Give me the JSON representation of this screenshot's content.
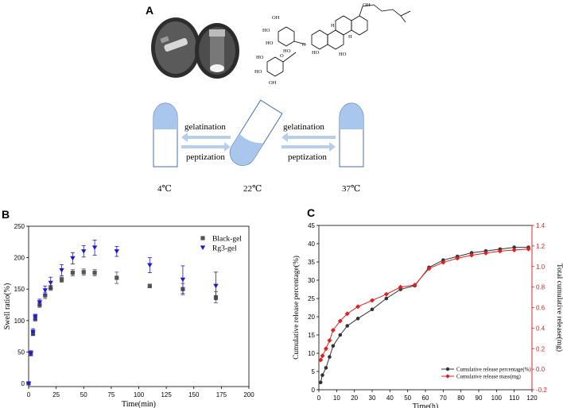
{
  "panel_a": {
    "letter": "A",
    "left_tube_temp": "4℃",
    "middle_tube_temp": "22℃",
    "right_tube_temp": "37℃",
    "left_gelatination": "gelatination",
    "left_peptization": "peptization",
    "right_gelatination": "gelatination",
    "right_peptization": "peptization",
    "molecule_labels": [
      "OH",
      "HO",
      "HO",
      "HO",
      "O",
      "O",
      "HO",
      "HO",
      "OH",
      "OH",
      "HO",
      "HO",
      "H",
      "H"
    ],
    "colors": {
      "gel_fill": "#a9c6ec",
      "arrow": "#b7cdea",
      "tube_stroke": "#4a6ea8"
    }
  },
  "chart_data": [
    {
      "type": "scatter",
      "panel": "B",
      "xlabel": "Time(min)",
      "ylabel": "Swell ratio(%)",
      "xlim": [
        0,
        200
      ],
      "ylim": [
        -5,
        250
      ],
      "xticks": [
        0,
        25,
        50,
        75,
        100,
        125,
        150,
        175,
        200
      ],
      "yticks": [
        0,
        50,
        100,
        150,
        200,
        250
      ],
      "legend_position": "top-right",
      "series": [
        {
          "name": "Black-gel",
          "marker": "square",
          "color": "#555555",
          "x": [
            0,
            2,
            4,
            6,
            10,
            15,
            20,
            30,
            40,
            50,
            60,
            80,
            110,
            140,
            170
          ],
          "y": [
            0,
            47,
            80,
            103,
            125,
            140,
            152,
            165,
            176,
            177,
            176,
            168,
            155,
            150,
            137
          ],
          "err": [
            0,
            3,
            4,
            4,
            4,
            5,
            4,
            4,
            5,
            5,
            5,
            9,
            3,
            9,
            9
          ]
        },
        {
          "name": "Rg3-gel",
          "marker": "triangle-down",
          "color": "#1a1ad0",
          "x": [
            0,
            2,
            4,
            6,
            10,
            15,
            20,
            30,
            40,
            50,
            60,
            80,
            110,
            140,
            170
          ],
          "y": [
            0,
            48,
            82,
            106,
            129,
            148,
            160,
            180,
            199,
            210,
            216,
            210,
            188,
            165,
            155
          ],
          "err": [
            0,
            4,
            5,
            4,
            5,
            7,
            9,
            9,
            9,
            9,
            12,
            8,
            12,
            22,
            22
          ]
        }
      ]
    },
    {
      "type": "line",
      "panel": "C",
      "xlabel": "Time(h)",
      "ylabel": "Cumulative release percentage(%)",
      "y2label": "Total cumulative release(mg)",
      "xlim": [
        0,
        120
      ],
      "ylim": [
        0,
        45
      ],
      "y2lim": [
        -0.2,
        1.4
      ],
      "xticks": [
        0,
        10,
        20,
        30,
        40,
        50,
        60,
        70,
        80,
        90,
        100,
        110,
        120
      ],
      "yticks": [
        0,
        5,
        10,
        15,
        20,
        25,
        30,
        35,
        40,
        45
      ],
      "y2ticks": [
        -0.2,
        0.0,
        0.2,
        0.4,
        0.6,
        0.8,
        1.0,
        1.2,
        1.4
      ],
      "legend_position": "bottom-right",
      "series": [
        {
          "name": "Cumulative release percentage(%)",
          "axis": "left",
          "color": "#333333",
          "marker": "circle",
          "x": [
            1,
            2,
            4,
            6,
            8,
            12,
            16,
            22,
            30,
            38,
            46,
            54,
            62,
            70,
            78,
            86,
            94,
            102,
            110,
            118
          ],
          "y": [
            2,
            4,
            6,
            9,
            12,
            15,
            17.5,
            19.5,
            22,
            25,
            27.5,
            28.5,
            33.5,
            35.5,
            36.5,
            37.5,
            38,
            38.5,
            39,
            39
          ]
        },
        {
          "name": "Cumulative release mass(mg)",
          "axis": "right",
          "color": "#e02020",
          "marker": "diamond",
          "x": [
            1,
            2,
            4,
            6,
            8,
            12,
            16,
            22,
            30,
            38,
            46,
            54,
            62,
            70,
            78,
            86,
            94,
            102,
            110,
            118
          ],
          "y": [
            0.09,
            0.13,
            0.2,
            0.28,
            0.38,
            0.47,
            0.54,
            0.61,
            0.67,
            0.73,
            0.8,
            0.82,
            0.98,
            1.04,
            1.08,
            1.11,
            1.13,
            1.15,
            1.16,
            1.17
          ]
        }
      ]
    }
  ]
}
